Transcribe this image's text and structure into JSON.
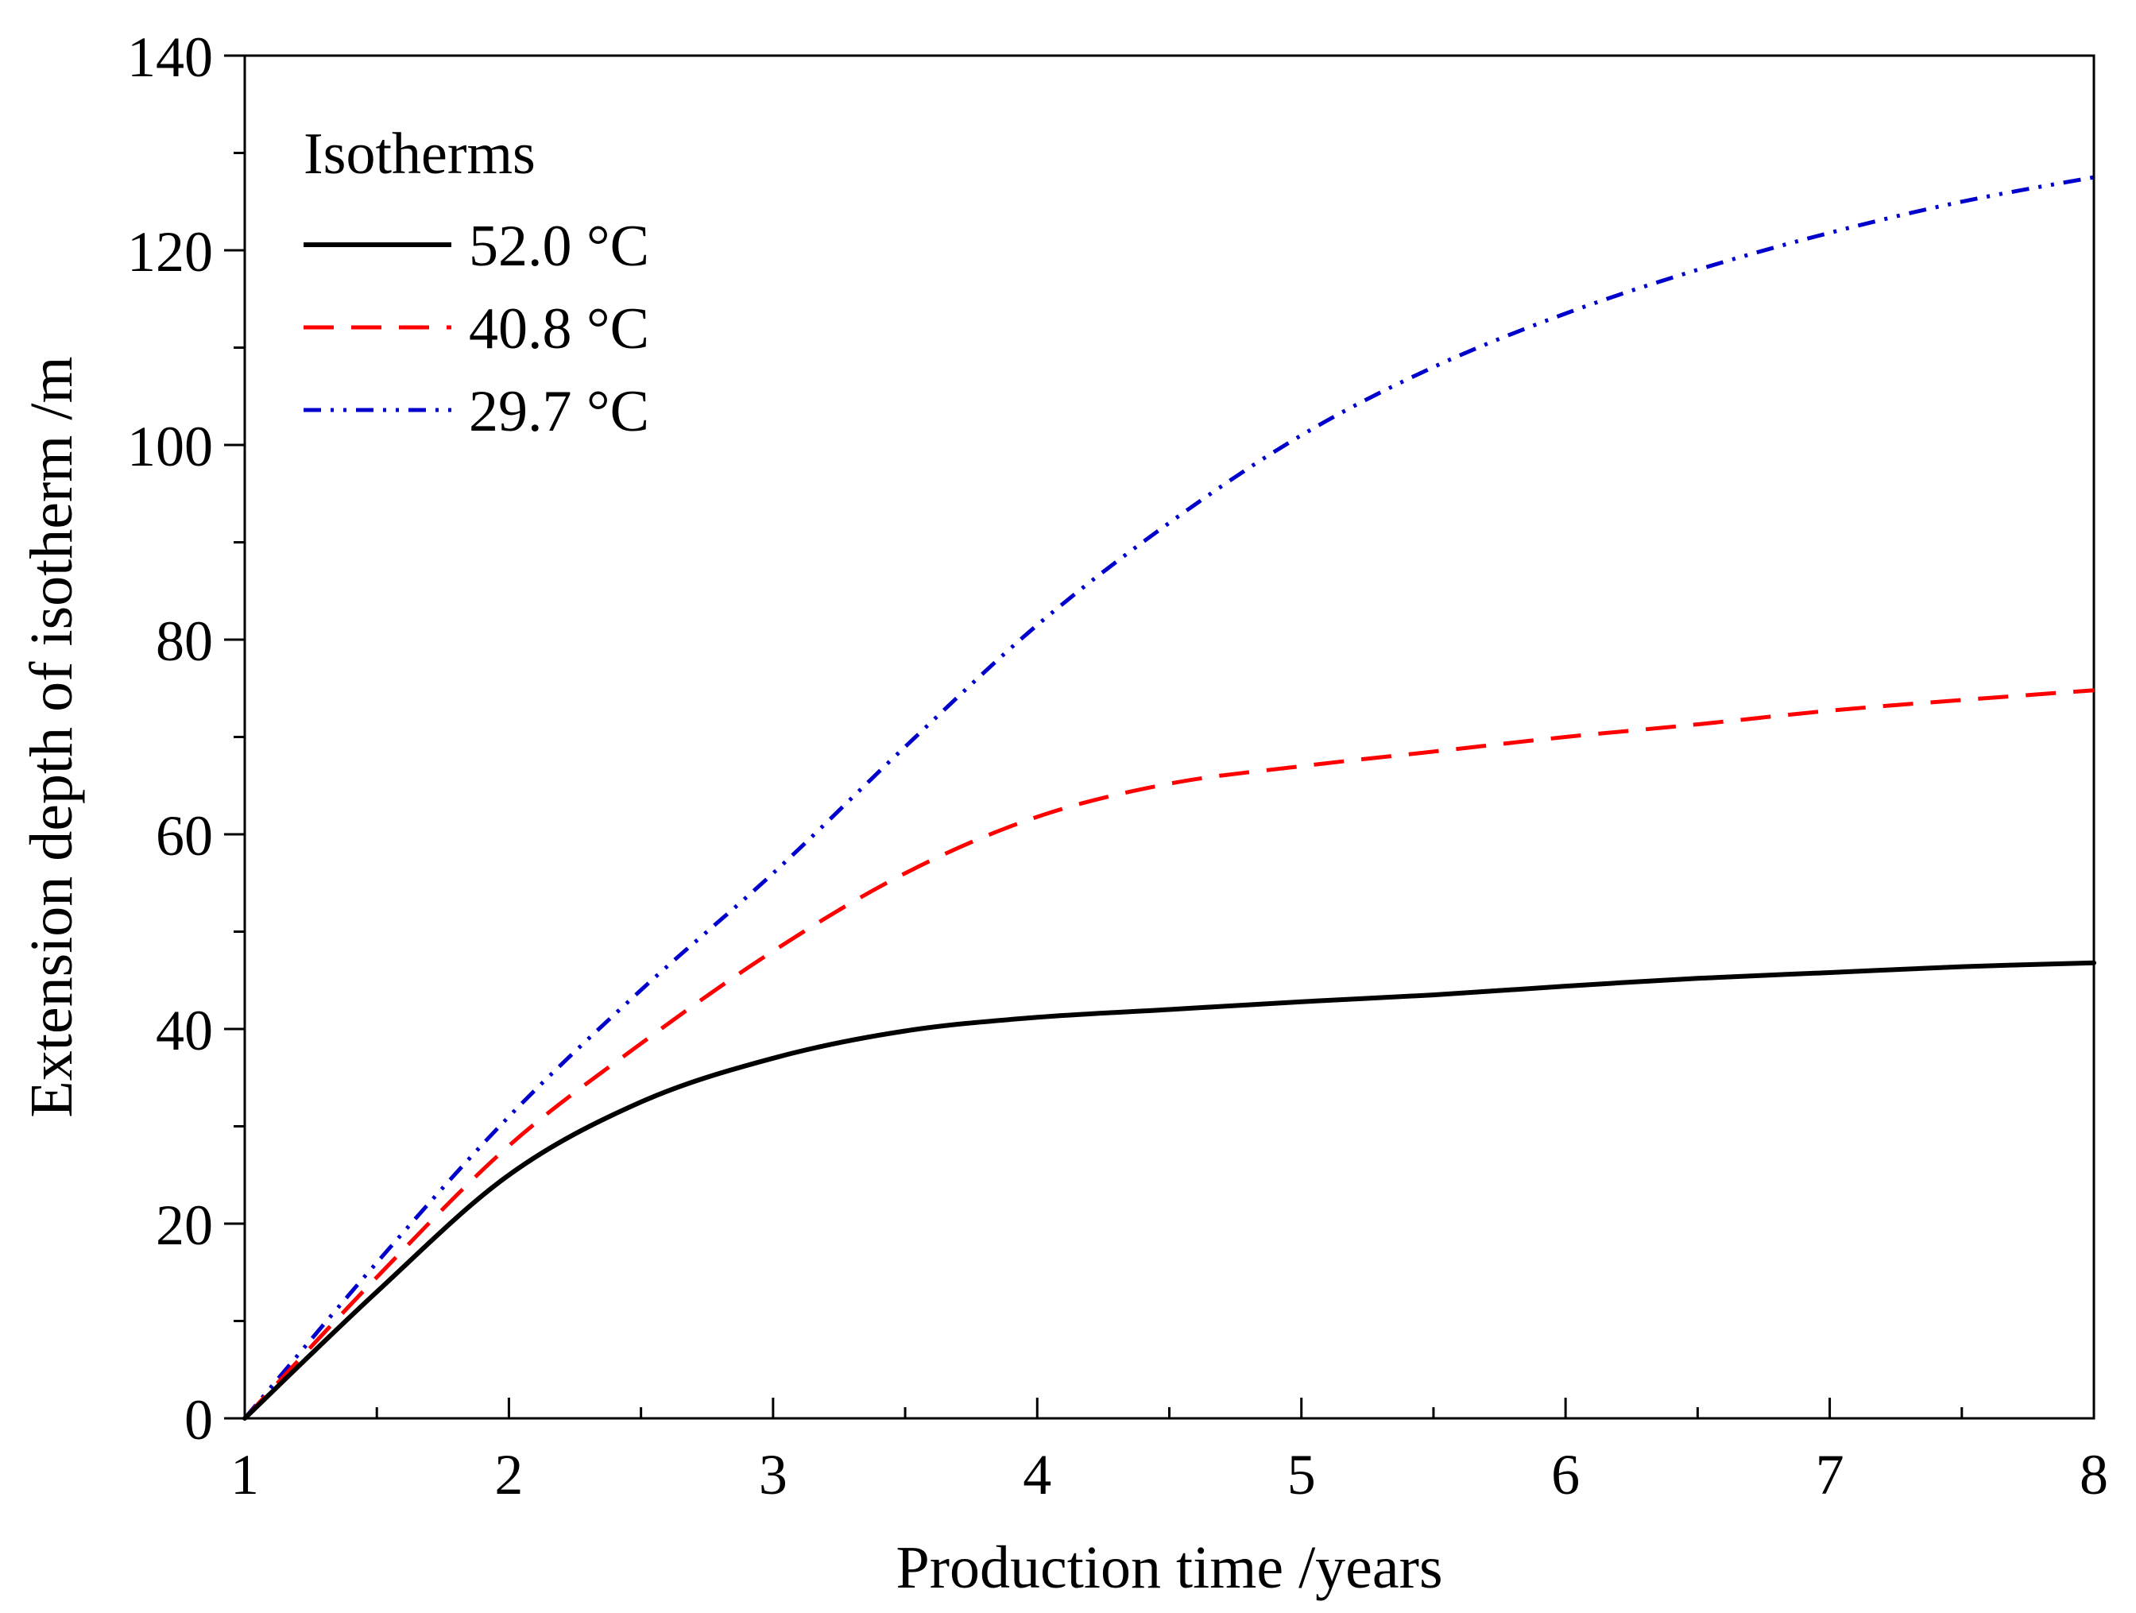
{
  "chart_data": {
    "type": "line",
    "title": "",
    "xlabel": "Production  time /years",
    "ylabel": "Extension depth of isotherm /m",
    "xlim": [
      1,
      8
    ],
    "ylim": [
      0,
      140
    ],
    "xticks": [
      1,
      2,
      3,
      4,
      5,
      6,
      7,
      8
    ],
    "yticks": [
      0,
      20,
      40,
      60,
      80,
      100,
      120,
      140
    ],
    "grid": false,
    "legend": {
      "title": "Isotherms",
      "position": "top-left"
    },
    "x": [
      1,
      1.5,
      2,
      2.5,
      3,
      3.5,
      4,
      4.5,
      5,
      5.5,
      6,
      6.5,
      7,
      7.5,
      8
    ],
    "series": [
      {
        "name": "52.0 °C",
        "color": "#000000",
        "style": "solid",
        "values": [
          0,
          13,
          25,
          32.5,
          37,
          39.8,
          41.2,
          42,
          42.8,
          43.5,
          44.4,
          45.2,
          45.8,
          46.4,
          46.8
        ]
      },
      {
        "name": "40.8 °C",
        "color": "#ff0000",
        "style": "dashed",
        "values": [
          0,
          14.5,
          28,
          38.5,
          48,
          56,
          61.8,
          65.2,
          67,
          68.5,
          70,
          71.3,
          72.7,
          73.8,
          74.8
        ]
      },
      {
        "name": "29.7 °C",
        "color": "#0000cc",
        "style": "dash-dot-dot",
        "values": [
          0,
          16,
          31,
          44,
          56,
          69,
          81.5,
          92,
          101,
          108,
          113.5,
          118,
          121.8,
          125,
          127.5
        ]
      }
    ]
  }
}
